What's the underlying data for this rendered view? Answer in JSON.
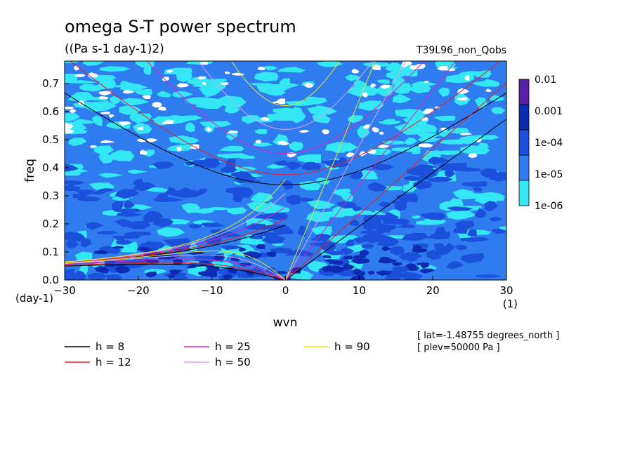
{
  "chart_data": {
    "type": "heatmap",
    "title": "omega S-T power spectrum",
    "units": "((Pa s-1 day-1)2)",
    "dataset": "T39L96_non_Qobs",
    "xlabel": "wvn",
    "ylabel": "freq",
    "x_unit": "(1)",
    "y_unit": "(day-1)",
    "xlim": [
      -30,
      30
    ],
    "ylim": [
      0.0,
      0.78
    ],
    "xticks": [
      -30,
      -20,
      -10,
      0,
      10,
      20,
      30
    ],
    "xtick_labels": [
      "-30",
      "-20",
      "-10",
      "0",
      "10",
      "20",
      "30"
    ],
    "yticks": [
      0.0,
      0.1,
      0.2,
      0.3,
      0.4,
      0.5,
      0.6,
      0.7
    ],
    "ytick_labels": [
      "0.0",
      "0.1",
      "0.2",
      "0.3",
      "0.4",
      "0.5",
      "0.6",
      "0.7"
    ],
    "colorbar": {
      "labels": [
        "0.01",
        "0.001",
        "1e-04",
        "1e-05",
        "1e-06"
      ],
      "colors": [
        "#5a22a8",
        "#0c2ab2",
        "#1a50dc",
        "#2f7cf0",
        "#33e8f4"
      ]
    },
    "fill_colors": {
      "background": "#2f7cf0",
      "low": "#33e8f4",
      "lowest": "#ffffff",
      "high": "#1a50dc",
      "higher": "#0c2ab2"
    },
    "equivalent_depths": [
      {
        "label": "h =  8",
        "h": 8,
        "color": "#000000"
      },
      {
        "label": "h = 12",
        "h": 12,
        "color": "#ee1c1c"
      },
      {
        "label": "h = 25",
        "h": 25,
        "color": "#e020b8"
      },
      {
        "label": "h = 50",
        "h": 50,
        "color": "#e0a0e8"
      },
      {
        "label": "h = 90",
        "h": 90,
        "color": "#e8e81a"
      }
    ],
    "annotations": [
      "[ lat=-1.48755 degrees_north ]",
      "[ plev=50000 Pa ]"
    ]
  }
}
